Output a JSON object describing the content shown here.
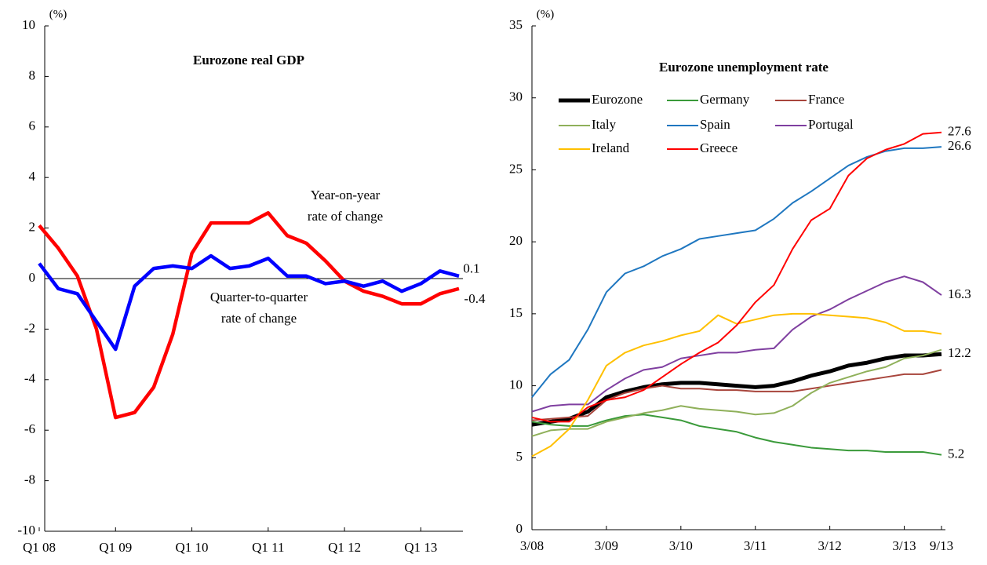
{
  "chart_data": [
    {
      "type": "line",
      "title": "Eurozone real GDP",
      "y_unit": "(%)",
      "categories": [
        "Q1 08",
        null,
        null,
        null,
        "Q1 09",
        null,
        null,
        null,
        "Q1 10",
        null,
        null,
        null,
        "Q1 11",
        null,
        null,
        null,
        "Q1 12",
        null,
        null,
        null,
        "Q1 13",
        null,
        null
      ],
      "ylim": [
        -10,
        10
      ],
      "yticks": [
        -10,
        -8,
        -6,
        -4,
        -2,
        0,
        2,
        4,
        6,
        8,
        10
      ],
      "zero_line": true,
      "series": [
        {
          "color": "#ff0000",
          "values": [
            2.1,
            1.2,
            0.1,
            -2.0,
            -5.5,
            -5.3,
            -4.3,
            -2.2,
            1.0,
            2.2,
            2.2,
            2.2,
            2.6,
            1.7,
            1.4,
            0.7,
            -0.1,
            -0.5,
            -0.7,
            -1.0,
            -1.0,
            -0.6,
            -0.4
          ],
          "value_labels": [
            null,
            null,
            null,
            null,
            null,
            null,
            null,
            null,
            null,
            null,
            null,
            null,
            null,
            null,
            null,
            null,
            null,
            null,
            null,
            null,
            null,
            null,
            "-0.4"
          ]
        },
        {
          "color": "#0000ff",
          "values": [
            0.6,
            -0.4,
            -0.6,
            -1.7,
            -2.8,
            -0.3,
            0.4,
            0.5,
            0.4,
            0.9,
            0.4,
            0.5,
            0.8,
            0.1,
            0.1,
            -0.2,
            -0.1,
            -0.3,
            -0.1,
            -0.5,
            -0.2,
            0.3,
            0.1
          ],
          "value_labels": [
            null,
            null,
            null,
            null,
            null,
            null,
            null,
            null,
            null,
            null,
            null,
            null,
            null,
            null,
            null,
            null,
            null,
            null,
            null,
            null,
            null,
            null,
            "0.1"
          ]
        }
      ],
      "annotations": [
        [
          "Year-on-year",
          "rate of change"
        ],
        [
          "Quarter-to-quarter",
          "rate of change"
        ]
      ]
    },
    {
      "type": "line",
      "title": "Eurozone unemployment rate",
      "y_unit": "(%)",
      "categories": [
        "3/08",
        null,
        null,
        null,
        "3/09",
        null,
        null,
        null,
        "3/10",
        null,
        null,
        null,
        "3/11",
        null,
        null,
        null,
        "3/12",
        null,
        null,
        null,
        "3/13",
        null,
        "9/13"
      ],
      "ylim": [
        0,
        35
      ],
      "yticks": [
        0,
        5,
        10,
        15,
        20,
        25,
        30,
        35
      ],
      "legend": "upper left",
      "series": [
        {
          "name": "Eurozone",
          "color": "#000000",
          "width": 5,
          "values": [
            7.3,
            7.5,
            7.7,
            8.2,
            9.2,
            9.6,
            9.9,
            10.1,
            10.2,
            10.2,
            10.1,
            10.0,
            9.9,
            10.0,
            10.3,
            10.7,
            11.0,
            11.4,
            11.6,
            11.9,
            12.1,
            12.1,
            12.2
          ],
          "value_labels": [
            null,
            null,
            null,
            null,
            null,
            null,
            null,
            null,
            null,
            null,
            null,
            null,
            null,
            null,
            null,
            null,
            null,
            null,
            null,
            null,
            null,
            null,
            "12.2"
          ]
        },
        {
          "name": "Germany",
          "color": "#3a9a3a",
          "values": [
            7.5,
            7.3,
            7.2,
            7.2,
            7.6,
            7.9,
            8.0,
            7.8,
            7.6,
            7.2,
            7.0,
            6.8,
            6.4,
            6.1,
            5.9,
            5.7,
            5.6,
            5.5,
            5.5,
            5.4,
            5.4,
            5.4,
            5.2
          ],
          "value_labels": [
            null,
            null,
            null,
            null,
            null,
            null,
            null,
            null,
            null,
            null,
            null,
            null,
            null,
            null,
            null,
            null,
            null,
            null,
            null,
            null,
            null,
            null,
            "5.2"
          ]
        },
        {
          "name": "France",
          "color": "#a8453c",
          "values": [
            7.6,
            7.7,
            7.8,
            7.9,
            9.0,
            9.5,
            9.8,
            10.0,
            9.8,
            9.8,
            9.7,
            9.7,
            9.6,
            9.6,
            9.6,
            9.8,
            10.0,
            10.2,
            10.4,
            10.6,
            10.8,
            10.8,
            11.1
          ]
        },
        {
          "name": "Italy",
          "color": "#8fb05a",
          "values": [
            6.5,
            6.9,
            7.0,
            7.0,
            7.5,
            7.8,
            8.1,
            8.3,
            8.6,
            8.4,
            8.3,
            8.2,
            8.0,
            8.1,
            8.6,
            9.5,
            10.2,
            10.6,
            11.0,
            11.3,
            11.9,
            12.1,
            12.5
          ]
        },
        {
          "name": "Spain",
          "color": "#1f77c0",
          "values": [
            9.2,
            10.8,
            11.8,
            13.9,
            16.5,
            17.8,
            18.3,
            19.0,
            19.5,
            20.2,
            20.4,
            20.6,
            20.8,
            21.6,
            22.7,
            23.5,
            24.4,
            25.3,
            25.9,
            26.3,
            26.5,
            26.5,
            26.6
          ],
          "value_labels": [
            null,
            null,
            null,
            null,
            null,
            null,
            null,
            null,
            null,
            null,
            null,
            null,
            null,
            null,
            null,
            null,
            null,
            null,
            null,
            null,
            null,
            null,
            "26.6"
          ],
          "label_color": "#0000ff"
        },
        {
          "name": "Portugal",
          "color": "#7f3fa0",
          "values": [
            8.2,
            8.6,
            8.7,
            8.7,
            9.7,
            10.5,
            11.1,
            11.3,
            11.9,
            12.1,
            12.3,
            12.3,
            12.5,
            12.6,
            13.9,
            14.8,
            15.3,
            16.0,
            16.6,
            17.2,
            17.6,
            17.2,
            16.3
          ],
          "value_labels": [
            null,
            null,
            null,
            null,
            null,
            null,
            null,
            null,
            null,
            null,
            null,
            null,
            null,
            null,
            null,
            null,
            null,
            null,
            null,
            null,
            null,
            null,
            "16.3"
          ]
        },
        {
          "name": "Ireland",
          "color": "#ffc000",
          "values": [
            5.1,
            5.8,
            7.0,
            9.0,
            11.4,
            12.3,
            12.8,
            13.1,
            13.5,
            13.8,
            14.9,
            14.3,
            14.6,
            14.9,
            15.0,
            15.0,
            14.9,
            14.8,
            14.7,
            14.4,
            13.8,
            13.8,
            13.6
          ]
        },
        {
          "name": "Greece",
          "color": "#ff0000",
          "values": [
            7.8,
            7.5,
            7.5,
            8.5,
            9.0,
            9.2,
            9.7,
            10.6,
            11.5,
            12.3,
            13.0,
            14.2,
            15.8,
            17.0,
            19.5,
            21.5,
            22.3,
            24.6,
            25.8,
            26.4,
            26.8,
            27.5,
            27.6
          ],
          "value_labels": [
            null,
            null,
            null,
            null,
            null,
            null,
            null,
            null,
            null,
            null,
            null,
            null,
            null,
            null,
            null,
            null,
            null,
            null,
            null,
            null,
            null,
            null,
            "27.6"
          ]
        }
      ]
    }
  ]
}
